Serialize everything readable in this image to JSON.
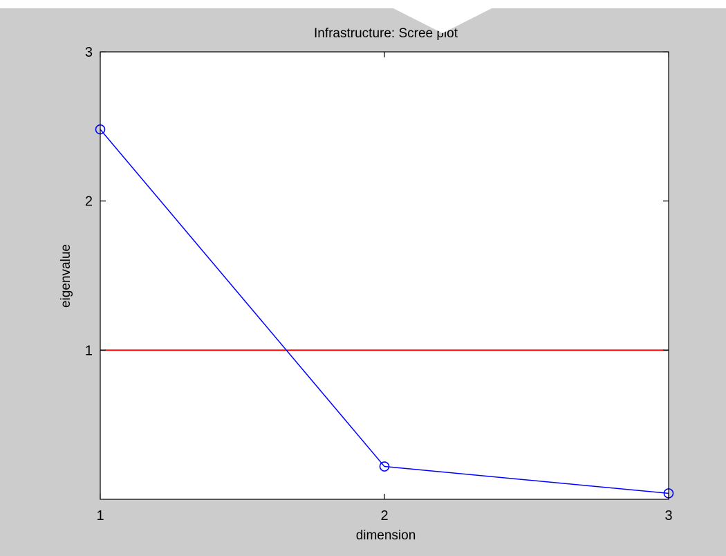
{
  "colors": {
    "figure_background": "#cccccc",
    "axes_background": "#ffffff",
    "series_line": "#0000ff",
    "threshold_line": "#ff0000",
    "axis_color": "#000000"
  },
  "chart_data": {
    "type": "line",
    "title": "Infrastructure: Scree plot",
    "xlabel": "dimension",
    "ylabel": "eigenvalue",
    "xlim": [
      1,
      3
    ],
    "ylim": [
      0,
      3
    ],
    "x_ticks": [
      1,
      2,
      3
    ],
    "y_ticks": [
      1,
      2,
      3
    ],
    "grid": false,
    "box": true,
    "series": [
      {
        "x": [
          1,
          2,
          3
        ],
        "y": [
          2.48,
          0.22,
          0.04
        ],
        "color": "#0000ff",
        "marker": "circle"
      }
    ],
    "reference_lines": [
      {
        "orientation": "horizontal",
        "y": 1,
        "color": "#ff0000"
      }
    ]
  }
}
